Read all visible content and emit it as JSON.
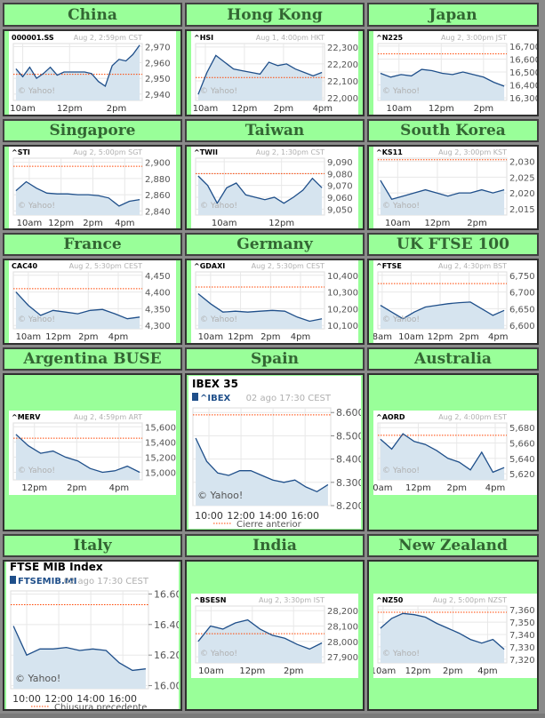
{
  "colors": {
    "page_bg": "#99ff99",
    "header_text": "#336633",
    "line": "#1f4f8a",
    "fill": "#d6e4ef",
    "prev_close": "#ff4400",
    "muted": "#b0b0b0"
  },
  "watermark": "© Yahoo!",
  "markets": [
    {
      "name": "China",
      "chart": {
        "style": "small",
        "symbol": "000001.SS",
        "time": "Aug 2, 2:59pm CST",
        "xrange": [
          9.6,
          15.1
        ],
        "xticks": [
          [
            10,
            "10am"
          ],
          [
            12,
            "12pm"
          ],
          [
            14,
            "2pm"
          ]
        ],
        "ylim": [
          2936,
          2972
        ],
        "yticks": [
          [
            2940,
            "2,940"
          ],
          [
            2950,
            "2,950"
          ],
          [
            2960,
            "2,960"
          ],
          [
            2970,
            "2,970"
          ]
        ],
        "prev": 2952.5,
        "series": [
          2956,
          2951,
          2957,
          2950,
          2953,
          2957,
          2952,
          2954,
          2954,
          2954,
          2954,
          2953,
          2948,
          2945,
          2958,
          2962,
          2961,
          2965,
          2971
        ]
      }
    },
    {
      "name": "Hong Kong",
      "chart": {
        "style": "small",
        "symbol": "^HSI",
        "time": "Aug 1, 4:00pm HKT",
        "xrange": [
          9.5,
          16.1
        ],
        "xticks": [
          [
            10,
            "10am"
          ],
          [
            12,
            "12pm"
          ],
          [
            14,
            "2pm"
          ],
          [
            16,
            "4pm"
          ]
        ],
        "ylim": [
          21985,
          22320
        ],
        "yticks": [
          [
            22000,
            "22,000"
          ],
          [
            22100,
            "22,100"
          ],
          [
            22200,
            "22,200"
          ],
          [
            22300,
            "22,300"
          ]
        ],
        "prev": 22120,
        "series": [
          22020,
          22150,
          22250,
          22210,
          22170,
          22160,
          22150,
          22140,
          22210,
          22190,
          22200,
          22170,
          22150,
          22130,
          22150
        ]
      }
    },
    {
      "name": "Japan",
      "chart": {
        "style": "small",
        "symbol": "^N225",
        "time": "Aug 2, 3:00pm JST",
        "xrange": [
          9.0,
          15.1
        ],
        "xticks": [
          [
            10,
            "10am"
          ],
          [
            12,
            "12pm"
          ],
          [
            14,
            "2pm"
          ]
        ],
        "ylim": [
          16280,
          16720
        ],
        "yticks": [
          [
            16300,
            "16,300"
          ],
          [
            16400,
            "16,400"
          ],
          [
            16500,
            "16,500"
          ],
          [
            16600,
            "16,600"
          ],
          [
            16700,
            "16,700"
          ]
        ],
        "prev": 16640,
        "series": [
          16490,
          16460,
          16480,
          16470,
          16520,
          16510,
          16490,
          16480,
          16500,
          16480,
          16460,
          16420,
          16390
        ]
      }
    },
    {
      "name": "Singapore",
      "chart": {
        "style": "small",
        "symbol": "^STI",
        "time": "Aug 2, 5:00pm SGT",
        "xrange": [
          9.0,
          17.1
        ],
        "xticks": [
          [
            10,
            "10am"
          ],
          [
            12,
            "12pm"
          ],
          [
            14,
            "2pm"
          ],
          [
            16,
            "4pm"
          ]
        ],
        "ylim": [
          2835,
          2905
        ],
        "yticks": [
          [
            2840,
            "2,840"
          ],
          [
            2860,
            "2,860"
          ],
          [
            2880,
            "2,880"
          ],
          [
            2900,
            "2,900"
          ]
        ],
        "prev": 2895,
        "series": [
          2865,
          2876,
          2868,
          2862,
          2861,
          2861,
          2860,
          2860,
          2859,
          2856,
          2846,
          2852,
          2854
        ]
      }
    },
    {
      "name": "Taiwan",
      "chart": {
        "style": "small",
        "symbol": "^TWII",
        "time": "Aug 2, 1:30pm CST",
        "xrange": [
          9.0,
          13.5
        ],
        "xticks": [
          [
            10,
            "10am"
          ],
          [
            12,
            "12pm"
          ]
        ],
        "ylim": [
          9045,
          9093
        ],
        "yticks": [
          [
            9050,
            "9,050"
          ],
          [
            9060,
            "9,060"
          ],
          [
            9070,
            "9,070"
          ],
          [
            9080,
            "9,080"
          ],
          [
            9090,
            "9,090"
          ]
        ],
        "prev": 9080,
        "series": [
          9078,
          9070,
          9055,
          9068,
          9072,
          9062,
          9060,
          9058,
          9060,
          9055,
          9060,
          9066,
          9076,
          9068
        ]
      }
    },
    {
      "name": "South Korea",
      "chart": {
        "style": "small",
        "symbol": "^KS11",
        "time": "Aug 2, 3:00pm KST",
        "xrange": [
          9.0,
          15.5
        ],
        "xticks": [
          [
            10,
            "10am"
          ],
          [
            12,
            "12pm"
          ],
          [
            14,
            "2pm"
          ]
        ],
        "ylim": [
          2013,
          2031
        ],
        "yticks": [
          [
            2015,
            "2,015"
          ],
          [
            2020,
            "2,020"
          ],
          [
            2025,
            "2,025"
          ],
          [
            2030,
            "2,030"
          ]
        ],
        "prev": 2030.5,
        "series": [
          2024,
          2018,
          2019,
          2020,
          2021,
          2020,
          2019,
          2020,
          2020,
          2021,
          2020,
          2021
        ]
      }
    },
    {
      "name": "France",
      "chart": {
        "style": "small",
        "symbol": "CAC40",
        "time": "Aug 2, 5:30pm CEST",
        "xrange": [
          9.0,
          17.6
        ],
        "xticks": [
          [
            10,
            "10am"
          ],
          [
            12,
            "12pm"
          ],
          [
            14,
            "2pm"
          ],
          [
            16,
            "4pm"
          ]
        ],
        "ylim": [
          4290,
          4460
        ],
        "yticks": [
          [
            4300,
            "4,300"
          ],
          [
            4350,
            "4,350"
          ],
          [
            4400,
            "4,400"
          ],
          [
            4450,
            "4,450"
          ]
        ],
        "prev": 4410,
        "series": [
          4400,
          4360,
          4330,
          4345,
          4340,
          4335,
          4345,
          4348,
          4335,
          4320,
          4325
        ]
      }
    },
    {
      "name": "Germany",
      "chart": {
        "style": "small",
        "symbol": "^GDAXI",
        "time": "Aug 2, 5:30pm CEST",
        "xrange": [
          9.0,
          17.6
        ],
        "xticks": [
          [
            10,
            "10am"
          ],
          [
            12,
            "12pm"
          ],
          [
            14,
            "2pm"
          ],
          [
            16,
            "4pm"
          ]
        ],
        "ylim": [
          10080,
          10420
        ],
        "yticks": [
          [
            10100,
            "10,100"
          ],
          [
            10200,
            "10,200"
          ],
          [
            10300,
            "10,300"
          ],
          [
            10400,
            "10,400"
          ]
        ],
        "prev": 10330,
        "series": [
          10290,
          10230,
          10180,
          10185,
          10180,
          10185,
          10190,
          10185,
          10150,
          10125,
          10140
        ]
      }
    },
    {
      "name": "UK FTSE 100",
      "chart": {
        "style": "small",
        "symbol": "^FTSE",
        "time": "Aug 2, 4:30pm BST",
        "xrange": [
          7.7,
          16.6
        ],
        "xticks": [
          [
            8,
            "8am"
          ],
          [
            10,
            "10am"
          ],
          [
            12,
            "12pm"
          ],
          [
            14,
            "2pm"
          ],
          [
            16,
            "4pm"
          ]
        ],
        "ylim": [
          6590,
          6760
        ],
        "yticks": [
          [
            6600,
            "6,600"
          ],
          [
            6650,
            "6,650"
          ],
          [
            6700,
            "6,700"
          ],
          [
            6750,
            "6,750"
          ]
        ],
        "prev": 6725,
        "series": [
          6660,
          6640,
          6620,
          6640,
          6655,
          6660,
          6665,
          6668,
          6670,
          6650,
          6630,
          6645
        ]
      }
    },
    {
      "name": "Argentina BUSE",
      "chart": {
        "style": "small",
        "symbol": "^MERV",
        "time": "Aug 2, 4:59pm  ART",
        "xrange": [
          11.0,
          17.1
        ],
        "xticks": [
          [
            12,
            "12pm"
          ],
          [
            14,
            "2pm"
          ],
          [
            16,
            "4pm"
          ]
        ],
        "ylim": [
          14900,
          15650
        ],
        "yticks": [
          [
            15000,
            "15,000"
          ],
          [
            15200,
            "15,200"
          ],
          [
            15400,
            "15,400"
          ],
          [
            15600,
            "15,600"
          ]
        ],
        "prev": 15450,
        "series": [
          15500,
          15350,
          15250,
          15280,
          15200,
          15150,
          15050,
          15000,
          15020,
          15080,
          15000
        ]
      }
    },
    {
      "name": "Spain",
      "chart": {
        "style": "large",
        "title": "IBEX 35",
        "symbol": "^IBEX",
        "time": "02 ago 17:30 CEST",
        "legend": "Cierre anterior",
        "xrange": [
          9.0,
          17.6
        ],
        "xticks": [
          [
            10,
            "10:00"
          ],
          [
            12,
            "12:00"
          ],
          [
            14,
            "14:00"
          ],
          [
            16,
            "16:00"
          ]
        ],
        "ylim": [
          8200,
          8620
        ],
        "yticks": [
          [
            8200,
            "8.200"
          ],
          [
            8300,
            "8.300"
          ],
          [
            8400,
            "8.400"
          ],
          [
            8500,
            "8.500"
          ],
          [
            8600,
            "8.600"
          ]
        ],
        "prev": 8590,
        "series": [
          8490,
          8390,
          8340,
          8330,
          8350,
          8350,
          8330,
          8310,
          8300,
          8310,
          8280,
          8260,
          8290
        ]
      }
    },
    {
      "name": "Australia",
      "chart": {
        "style": "small",
        "symbol": "^AORD",
        "time": "Aug 2, 4:00pm EST",
        "xrange": [
          9.9,
          16.6
        ],
        "xticks": [
          [
            10,
            "10am"
          ],
          [
            12,
            "12pm"
          ],
          [
            14,
            "2pm"
          ],
          [
            16,
            "4pm"
          ]
        ],
        "ylim": [
          5612,
          5686
        ],
        "yticks": [
          [
            5620,
            "5,620"
          ],
          [
            5640,
            "5,640"
          ],
          [
            5660,
            "5,660"
          ],
          [
            5680,
            "5,680"
          ]
        ],
        "prev": 5670,
        "series": [
          5665,
          5652,
          5672,
          5662,
          5658,
          5650,
          5640,
          5635,
          5625,
          5648,
          5622,
          5628
        ]
      }
    },
    {
      "name": "Italy",
      "chart": {
        "style": "large",
        "title": "FTSE MIB Index",
        "symbol": "FTSEMIB.MI",
        "time": "02 ago 17:30 CEST",
        "legend": "Chiusura precedente",
        "xrange": [
          9.0,
          17.6
        ],
        "xticks": [
          [
            10,
            "10:00"
          ],
          [
            12,
            "12:00"
          ],
          [
            14,
            "14:00"
          ],
          [
            16,
            "16:00"
          ]
        ],
        "ylim": [
          15980,
          16620
        ],
        "yticks": [
          [
            16000,
            "16.000"
          ],
          [
            16200,
            "16.200"
          ],
          [
            16400,
            "16.400"
          ],
          [
            16600,
            "16.600"
          ]
        ],
        "prev": 16530,
        "series": [
          16390,
          16200,
          16240,
          16240,
          16250,
          16230,
          16240,
          16230,
          16150,
          16100,
          16110
        ]
      }
    },
    {
      "name": "India",
      "chart": {
        "style": "small",
        "symbol": "^BSESN",
        "time": "Aug 2, 3:30pm IST",
        "xrange": [
          9.25,
          15.5
        ],
        "xticks": [
          [
            10,
            "10am"
          ],
          [
            12,
            "12pm"
          ],
          [
            14,
            "2pm"
          ]
        ],
        "ylim": [
          27860,
          28230
        ],
        "yticks": [
          [
            27900,
            "27,900"
          ],
          [
            28000,
            "28,000"
          ],
          [
            28100,
            "28,100"
          ],
          [
            28200,
            "28,200"
          ]
        ],
        "prev": 28050,
        "series": [
          28000,
          28100,
          28080,
          28120,
          28140,
          28080,
          28040,
          28020,
          27980,
          27950,
          27990
        ]
      }
    },
    {
      "name": "New Zealand",
      "chart": {
        "style": "small",
        "symbol": "^NZ50",
        "time": "Aug 2, 5:00pm NZST",
        "xrange": [
          9.7,
          17.1
        ],
        "xticks": [
          [
            10,
            "10am"
          ],
          [
            12,
            "12pm"
          ],
          [
            14,
            "2pm"
          ],
          [
            16,
            "4pm"
          ]
        ],
        "ylim": [
          7317,
          7363
        ],
        "yticks": [
          [
            7320,
            "7,320"
          ],
          [
            7330,
            "7,330"
          ],
          [
            7340,
            "7,340"
          ],
          [
            7350,
            "7,350"
          ],
          [
            7360,
            "7,360"
          ]
        ],
        "prev": 7358,
        "series": [
          7345,
          7353,
          7357,
          7356,
          7354,
          7349,
          7345,
          7341,
          7336,
          7333,
          7336,
          7328
        ]
      }
    }
  ]
}
